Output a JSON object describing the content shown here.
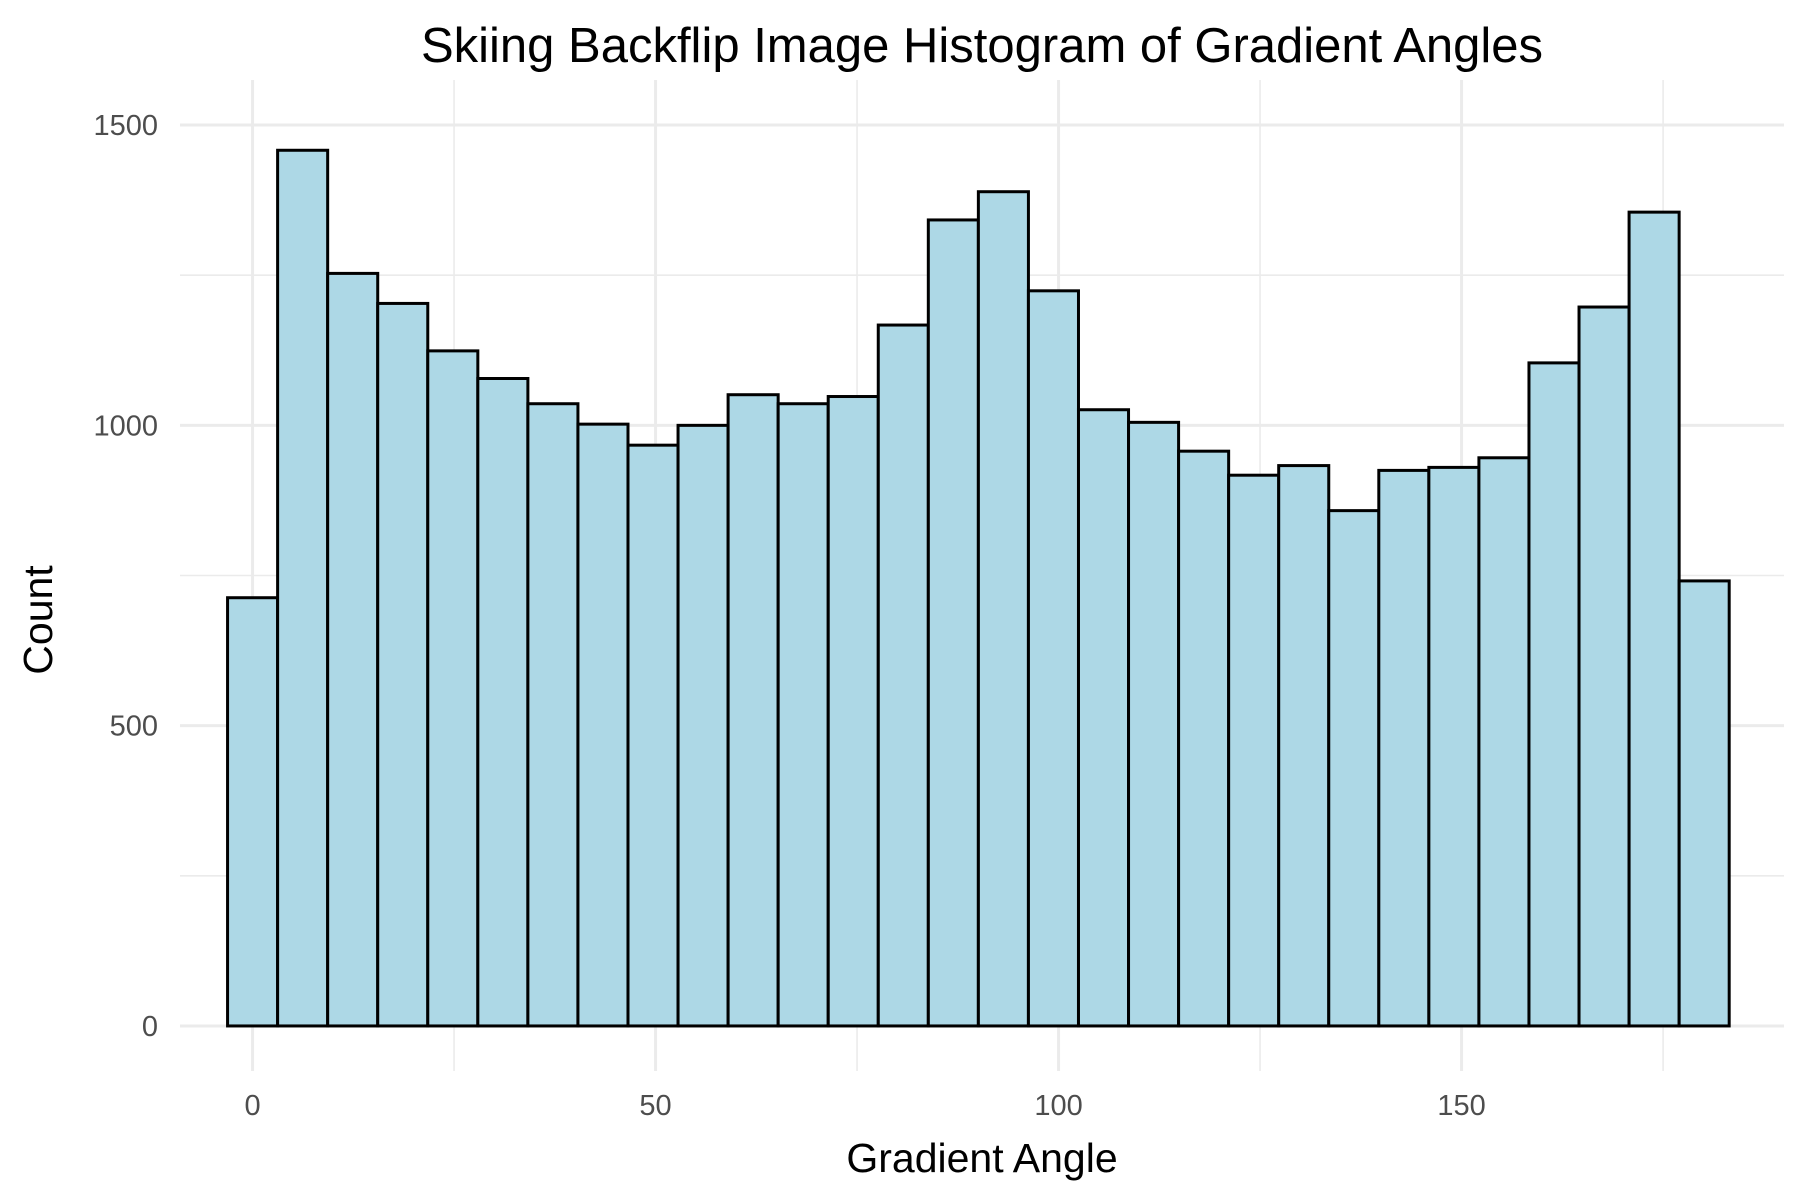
{
  "chart_data": {
    "type": "bar",
    "subtype": "histogram",
    "title": "Skiing Backflip Image Histogram of Gradient Angles",
    "xlabel": "Gradient Angle",
    "ylabel": "Count",
    "xlim": [
      -9,
      190
    ],
    "ylim": [
      -75,
      1575
    ],
    "x_ticks": [
      0,
      50,
      100,
      150
    ],
    "y_ticks": [
      0,
      500,
      1000,
      1500
    ],
    "grid": true,
    "bin_width": 6.21,
    "x_start": -3.1,
    "values": [
      713,
      1458,
      1253,
      1203,
      1124,
      1078,
      1036,
      1002,
      967,
      1000,
      1051,
      1036,
      1048,
      1167,
      1342,
      1389,
      1224,
      1026,
      1005,
      957,
      917,
      933,
      858,
      925,
      930,
      946,
      1104,
      1197,
      1355,
      741
    ],
    "colors": {
      "bar_fill": "#add8e6",
      "bar_stroke": "#000000",
      "grid": "#ebebeb",
      "tick_text": "#4d4d4d"
    }
  }
}
